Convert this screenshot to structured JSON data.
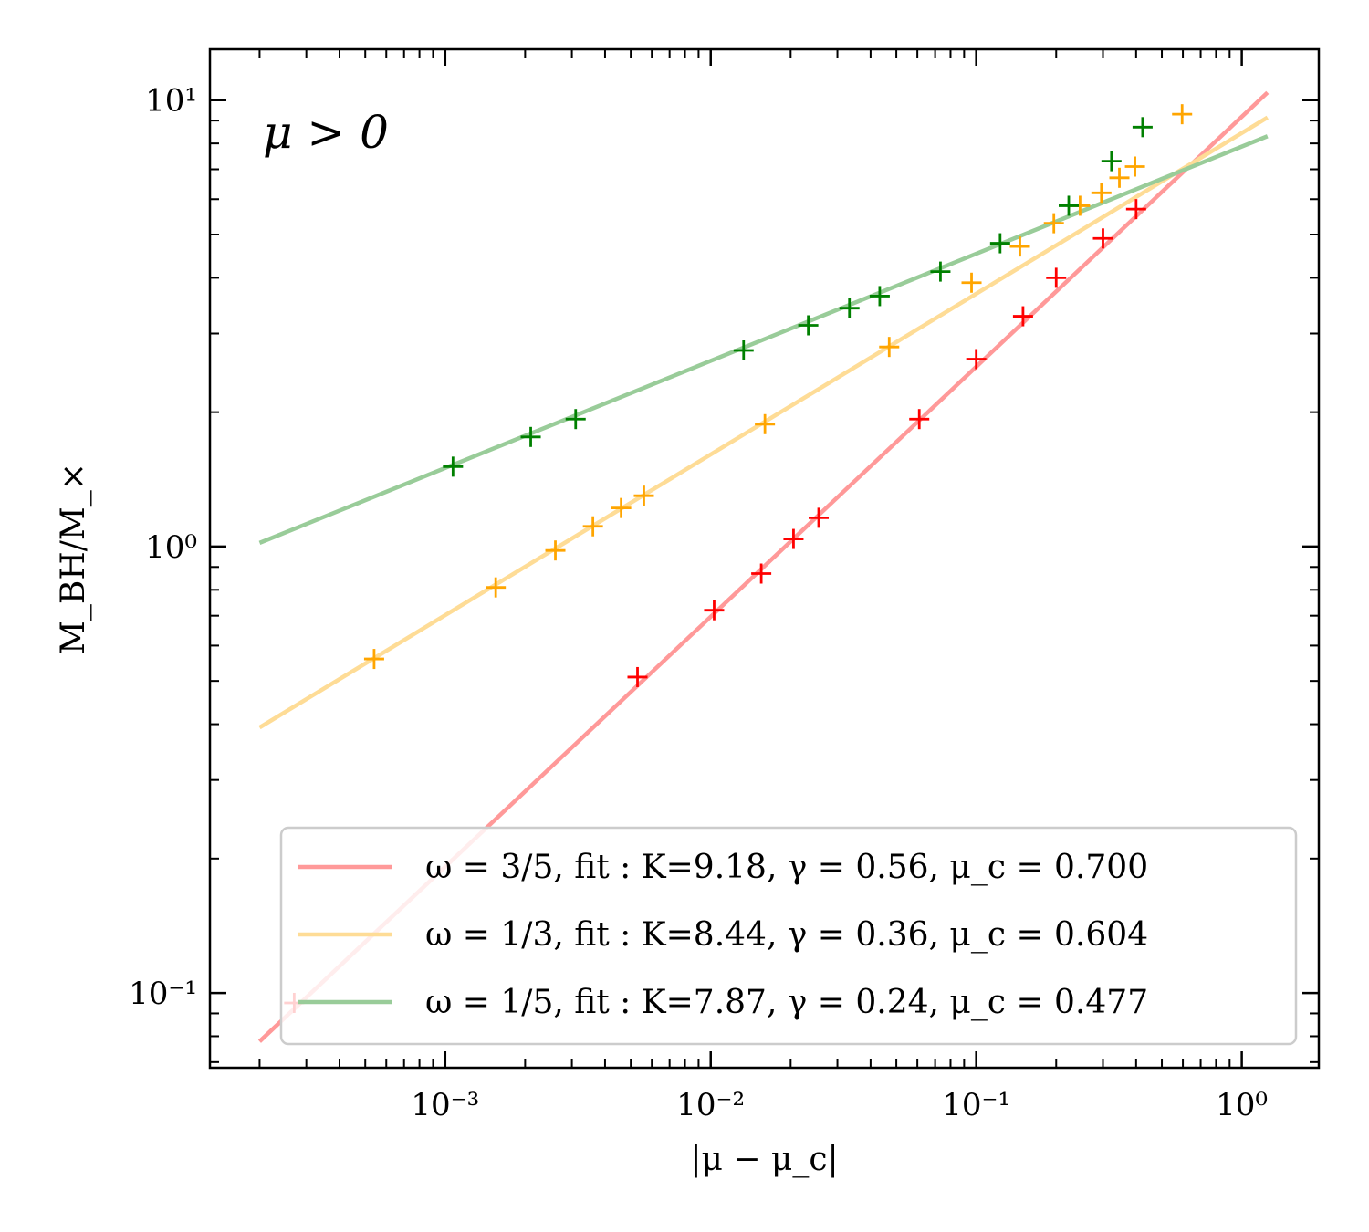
{
  "chart_data": {
    "type": "scatter",
    "scale": {
      "x": "log",
      "y": "log"
    },
    "xlabel": "|μ − μ_c|",
    "ylabel": "M_BH/M_×",
    "xlim": [
      0.00013,
      1.95
    ],
    "ylim": [
      0.068,
      13.0
    ],
    "x_ticks": [
      {
        "value": 0.001,
        "label": "10⁻³"
      },
      {
        "value": 0.01,
        "label": "10⁻²"
      },
      {
        "value": 0.1,
        "label": "10⁻¹"
      },
      {
        "value": 1,
        "label": "10⁰"
      }
    ],
    "y_ticks": [
      {
        "value": 0.1,
        "label": "10⁻¹"
      },
      {
        "value": 1,
        "label": "10⁰"
      },
      {
        "value": 10,
        "label": "10¹"
      }
    ],
    "annotation": "μ > 0",
    "legend_position": "lower right",
    "series": [
      {
        "name": "ω = 3/5",
        "label": "ω = 3/5, fit : K=9.18, γ = 0.56, μ_c = 0.700",
        "color": "#ff0000",
        "fit_color": "#ff9999",
        "fit": {
          "K": 9.18,
          "gamma": 0.56,
          "mu_c": 0.7,
          "x_range": [
            0.0002,
            1.25
          ]
        },
        "points": [
          [
            0.00027,
            0.095
          ],
          [
            0.0053,
            0.51
          ],
          [
            0.0103,
            0.72
          ],
          [
            0.0155,
            0.87
          ],
          [
            0.0205,
            1.04
          ],
          [
            0.0255,
            1.16
          ],
          [
            0.061,
            1.93
          ],
          [
            0.1,
            2.63
          ],
          [
            0.15,
            3.28
          ],
          [
            0.2,
            4.0
          ],
          [
            0.3,
            4.9
          ],
          [
            0.4,
            5.7
          ]
        ]
      },
      {
        "name": "ω = 1/3",
        "label": "ω = 1/3, fit : K=8.44, γ = 0.36, μ_c = 0.604",
        "color": "#ffa500",
        "fit_color": "#fedc96",
        "fit": {
          "K": 8.44,
          "gamma": 0.36,
          "mu_c": 0.604,
          "x_range": [
            0.0002,
            1.25
          ]
        },
        "points": [
          [
            0.00054,
            0.56
          ],
          [
            0.00155,
            0.81
          ],
          [
            0.0026,
            0.98
          ],
          [
            0.0036,
            1.11
          ],
          [
            0.0046,
            1.22
          ],
          [
            0.0056,
            1.3
          ],
          [
            0.016,
            1.88
          ],
          [
            0.047,
            2.8
          ],
          [
            0.096,
            3.9
          ],
          [
            0.146,
            4.7
          ],
          [
            0.196,
            5.3
          ],
          [
            0.246,
            5.8
          ],
          [
            0.296,
            6.2
          ],
          [
            0.346,
            6.7
          ],
          [
            0.396,
            7.1
          ],
          [
            0.596,
            9.3
          ]
        ]
      },
      {
        "name": "ω = 1/5",
        "label": "ω = 1/5, fit : K=7.87, γ = 0.24, μ_c = 0.477",
        "color": "#008000",
        "fit_color": "#99cc99",
        "fit": {
          "K": 7.87,
          "gamma": 0.24,
          "mu_c": 0.477,
          "x_range": [
            0.0002,
            1.25
          ]
        },
        "points": [
          [
            0.00107,
            1.51
          ],
          [
            0.0021,
            1.76
          ],
          [
            0.0031,
            1.93
          ],
          [
            0.0133,
            2.75
          ],
          [
            0.0233,
            3.13
          ],
          [
            0.0333,
            3.42
          ],
          [
            0.0433,
            3.64
          ],
          [
            0.0733,
            4.13
          ],
          [
            0.123,
            4.78
          ],
          [
            0.223,
            5.8
          ],
          [
            0.323,
            7.3
          ],
          [
            0.423,
            8.7
          ]
        ]
      }
    ]
  }
}
